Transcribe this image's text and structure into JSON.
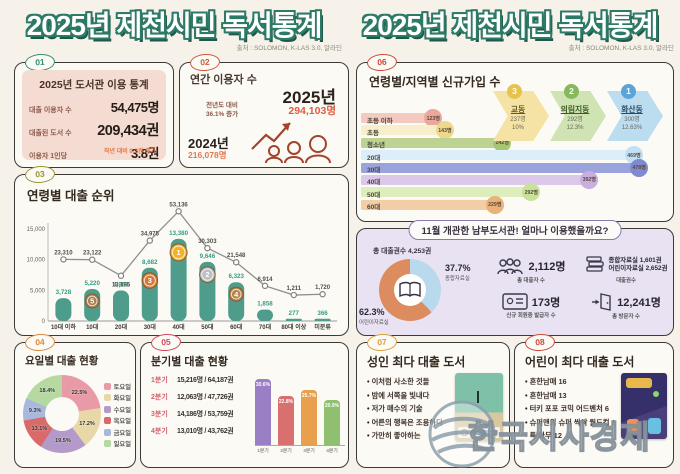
{
  "header": {
    "title_left": "2025년 제천시민 독서통계",
    "title_right": "2025년 제천시민 독서통계",
    "source_left": "출처 : SOLOMON, K-LAS 3.0, 알라딘",
    "source_right": "출처 : SOLOMON, K-LAS 3.0, 알라딘"
  },
  "panels": {
    "p01": {
      "badge": "01",
      "title": "2025년 도서관 이용 통계",
      "rows": [
        {
          "label": "대출 이용자 수",
          "value": "54,475명"
        },
        {
          "label": "대출된 도서 수",
          "value": "209,434권"
        },
        {
          "label": "이용자 1인당",
          "value": "3.8권"
        }
      ],
      "note": "작년 대비 0.2권 증가"
    },
    "p02": {
      "badge": "02",
      "title": "연간 이용자 수",
      "year_now": "2025년",
      "value_now": "294,103명",
      "delta_line1": "전년도 대비",
      "delta_line2": "36.1% 증가",
      "year_prev": "2024년",
      "value_prev": "216,078명"
    },
    "p03": {
      "badge": "03",
      "title": "연령별 대출 순위"
    },
    "p04": {
      "badge": "04",
      "title": "요일별 대출 현황"
    },
    "p05": {
      "badge": "05",
      "title": "분기별 대출 현황"
    },
    "p06": {
      "badge": "06",
      "title": "연령별/지역별 신규가입 수",
      "regions": [
        {
          "rank": "3",
          "name": "교동",
          "count": "237명",
          "pct": "10%",
          "arrow_color": "#f4e3a4",
          "badge_color": "#e5c34c",
          "text_color": "#6a5a22"
        },
        {
          "rank": "2",
          "name": "의림지동",
          "count": "292명",
          "pct": "12.3%",
          "arrow_color": "#cfe4b2",
          "badge_color": "#85b95c",
          "text_color": "#3c5c26"
        },
        {
          "rank": "1",
          "name": "화산동",
          "count": "300명",
          "pct": "12.63%",
          "arrow_color": "#bcdcf0",
          "badge_color": "#5ba3d8",
          "text_color": "#2c4a66"
        }
      ]
    },
    "nambu": {
      "title": "11월 개관한 남부도서관! 얼마나 이용했을까요?",
      "total": "총 대출권수 4,253권",
      "pct_general": "37.7%",
      "label_general": "종합자료실",
      "pct_children": "62.3%",
      "label_children": "어린이자료실",
      "borrowers": "2,112명",
      "borrowers_label": "총 대출자 수",
      "loans_line1": "종합자료실  1,601권",
      "loans_line2": "어린이자료실  2,652권",
      "loans_label": "대출권수",
      "members": "173명",
      "members_label": "신규 회원증 발급자 수",
      "visitors": "12,241명",
      "visitors_label": "총 방문자 수"
    },
    "p07": {
      "badge": "07",
      "title": "성인 최다 대출 도서",
      "books": [
        "이처럼 사소한 것들",
        "밤에 서쪽을 빛내다",
        "저가 매수의 기술",
        "어른의 행복은 조용하다",
        "가만히 좋아하는"
      ]
    },
    "p08": {
      "badge": "08",
      "title": "어린이 최다 대출 도서",
      "books": [
        "흔한남매 16",
        "흔한남매 13",
        "터키 포포 코믹 어드벤처 6",
        "슈퍼맨의 슈퍼 싹싹 월드컵 1",
        "특 마무 12"
      ]
    }
  },
  "watermark": {
    "text": "한국시사경제"
  },
  "chart_data": [
    {
      "id": "age_loans",
      "type": "bar",
      "title": "연령별 대출 순위",
      "categories": [
        "10대 이하",
        "10대",
        "20대",
        "30대",
        "40대",
        "50대",
        "60대",
        "70대",
        "80대 이상",
        "미분류"
      ],
      "series": [
        {
          "name": "대출 이용자 수(막대)",
          "values": [
            3728,
            5220,
            4968,
            8682,
            13380,
            9646,
            6323,
            1858,
            277,
            366
          ],
          "labels": [
            "3,728",
            "5,220",
            "4,968",
            "8,682",
            "13,380",
            "9,646",
            "6,323",
            "1,858",
            "277",
            "366"
          ]
        },
        {
          "name": "대출 권수(꺾은선)",
          "values": [
            23310,
            23122,
            13195,
            34975,
            53136,
            30303,
            21548,
            6914,
            1211,
            1720
          ],
          "labels": [
            "23,310",
            "23,122",
            "13,195",
            "34,975",
            "53,136",
            "30,303",
            "21,548",
            "6,914",
            "1,211",
            "1,720"
          ]
        }
      ],
      "yticks": [
        "15,000",
        "10,000",
        "5,000",
        "0"
      ],
      "ytick_values": [
        15000,
        10000,
        5000,
        0
      ],
      "ylim": [
        0,
        15000
      ],
      "ranks": [
        {
          "index": 4,
          "rank": "1"
        },
        {
          "index": 5,
          "rank": "2"
        },
        {
          "index": 3,
          "rank": "3"
        },
        {
          "index": 6,
          "rank": "4"
        },
        {
          "index": 1,
          "rank": "5"
        }
      ],
      "bar_color": "#4e9c8c",
      "legend_position": "none",
      "grid": false
    },
    {
      "id": "weekday_loans",
      "type": "pie",
      "title": "요일별 대출 현황",
      "labels": [
        "토요일",
        "화요일",
        "수요일",
        "목요일",
        "금요일",
        "일요일"
      ],
      "values": [
        22.5,
        17.2,
        19.5,
        13.1,
        9.3,
        18.4
      ],
      "value_labels": [
        "22.5%",
        "17.2%",
        "19.5%",
        "13.1%",
        "9.3%",
        "18.4%"
      ],
      "colors": [
        "#e89aa6",
        "#e8d8a8",
        "#b39ac8",
        "#d96a6a",
        "#a8b8dc",
        "#b5d9a0"
      ],
      "legend_position": "right"
    },
    {
      "id": "quarterly_loans",
      "type": "bar",
      "title": "분기별 대출 현황",
      "categories": [
        "1분기",
        "2분기",
        "3분기",
        "4분기"
      ],
      "values": [
        30.6,
        22.8,
        25.7,
        20.9
      ],
      "value_labels": [
        "30.6%",
        "22.8%",
        "25.7%",
        "20.9%"
      ],
      "details": [
        "15,216명 / 64,187권",
        "12,063명 / 47,726권",
        "14,186명 / 53,759권",
        "13,010명 / 43,762권"
      ],
      "colors": [
        "#9b7fc4",
        "#d97070",
        "#e8a04f",
        "#8fbf6f"
      ]
    },
    {
      "id": "new_members_by_age",
      "type": "bar",
      "orientation": "horizontal",
      "title": "연령별/지역별 신규가입 수",
      "categories": [
        "초등 이하",
        "초등",
        "청소년",
        "20대",
        "30대",
        "40대",
        "50대",
        "60대"
      ],
      "values": [
        123,
        143,
        242,
        469,
        478,
        392,
        292,
        229
      ],
      "value_labels": [
        "123명",
        "143명",
        "242명",
        "469명",
        "478명",
        "392명",
        "292명",
        "229명"
      ],
      "bar_colors": [
        "#f4c9bf",
        "#f7eecb",
        "#bed393",
        "#ddeefb",
        "#9aa3dc",
        "#dcc9ea",
        "#ddedbb",
        "#f2cda5"
      ],
      "bubble_colors": [
        "#eba79c",
        "#ecd98e",
        "#a8c573",
        "#c2e0f5",
        "#7f8ad0",
        "#c9aede",
        "#c8e29a",
        "#e8b279"
      ]
    },
    {
      "id": "nambu_loans_share",
      "type": "pie",
      "title": "11월 개관한 남부도서관 대출 비율",
      "labels": [
        "종합자료실",
        "어린이자료실"
      ],
      "values": [
        37.7,
        62.3
      ],
      "value_labels": [
        "37.7%",
        "62.3%"
      ],
      "colors": [
        "#b9d9ec",
        "#dd8c5f"
      ]
    }
  ]
}
